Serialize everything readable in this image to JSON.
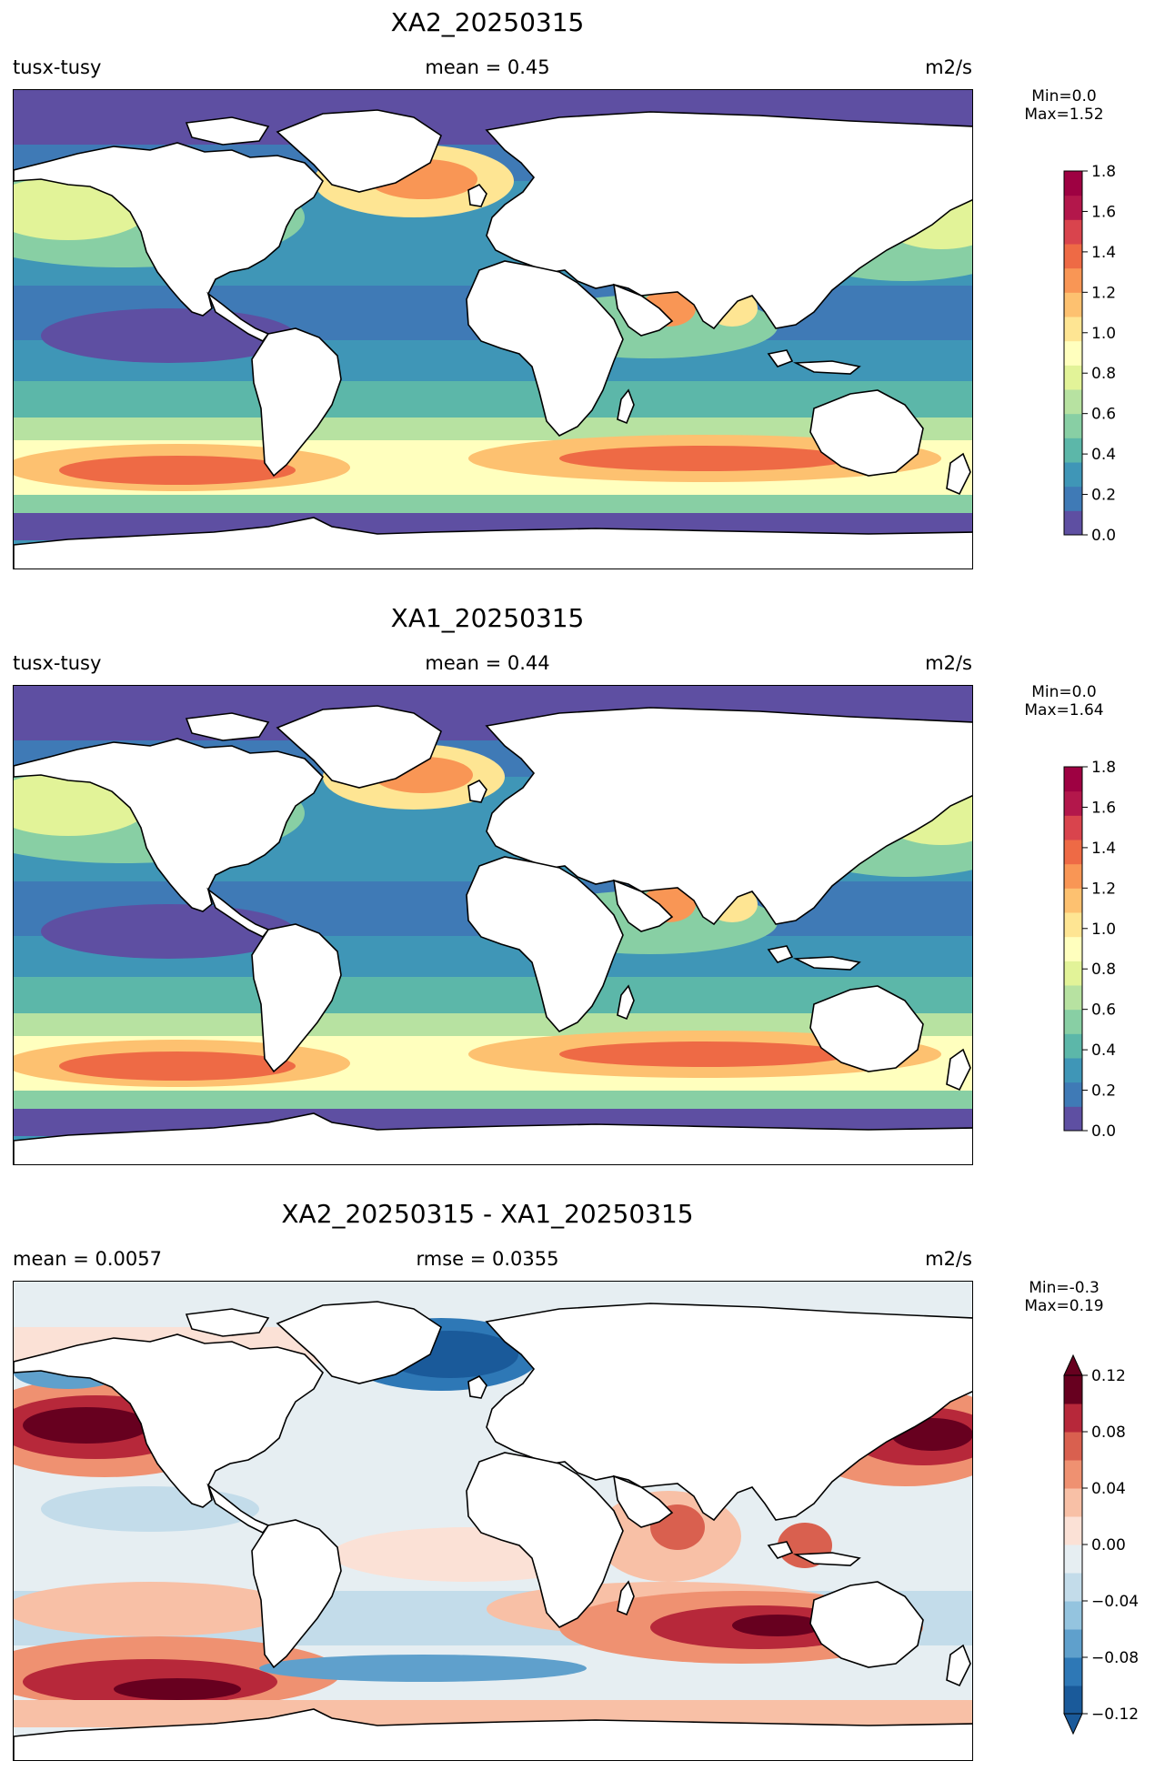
{
  "panels": [
    {
      "title": "XA2_20250315",
      "left_label": "tusx-tusy",
      "center_label": "mean = 0.45",
      "units": "m2/s",
      "colorbar": {
        "min_text": "Min=0.0",
        "max_text": "Max=1.52",
        "ticks": [
          "0.0",
          "0.2",
          "0.4",
          "0.6",
          "0.8",
          "1.0",
          "1.2",
          "1.4",
          "1.6",
          "1.8"
        ],
        "colors": [
          "#5e4fa2",
          "#3f7ab6",
          "#3f96b7",
          "#5cb7a9",
          "#88cfa4",
          "#b7e2a1",
          "#e2f398",
          "#ffffbe",
          "#fee593",
          "#fdc170",
          "#f99655",
          "#ee6a45",
          "#d9444d",
          "#b3174b",
          "#9e0142"
        ]
      },
      "chart_data": {
        "type": "heatmap",
        "variable": "tusx-tusy",
        "mean": 0.45,
        "units": "m2/s",
        "vmin": 0.0,
        "vmax": 1.52,
        "colorbar_range": [
          0.0,
          1.8
        ]
      }
    },
    {
      "title": "XA1_20250315",
      "left_label": "tusx-tusy",
      "center_label": "mean = 0.44",
      "units": "m2/s",
      "colorbar": {
        "min_text": "Min=0.0",
        "max_text": "Max=1.64",
        "ticks": [
          "0.0",
          "0.2",
          "0.4",
          "0.6",
          "0.8",
          "1.0",
          "1.2",
          "1.4",
          "1.6",
          "1.8"
        ],
        "colors": [
          "#5e4fa2",
          "#3f7ab6",
          "#3f96b7",
          "#5cb7a9",
          "#88cfa4",
          "#b7e2a1",
          "#e2f398",
          "#ffffbe",
          "#fee593",
          "#fdc170",
          "#f99655",
          "#ee6a45",
          "#d9444d",
          "#b3174b",
          "#9e0142"
        ]
      },
      "chart_data": {
        "type": "heatmap",
        "variable": "tusx-tusy",
        "mean": 0.44,
        "units": "m2/s",
        "vmin": 0.0,
        "vmax": 1.64,
        "colorbar_range": [
          0.0,
          1.8
        ]
      }
    },
    {
      "title": "XA2_20250315 - XA1_20250315",
      "left_label": "mean = 0.0057",
      "center_label": "rmse = 0.0355",
      "units": "m2/s",
      "colorbar": {
        "min_text": "Min=-0.3",
        "max_text": "Max=0.19",
        "ticks": [
          "−0.12",
          "−0.08",
          "−0.04",
          "0.00",
          "0.04",
          "0.08",
          "0.12"
        ],
        "colors": [
          "#1a5a9a",
          "#2e78b6",
          "#5fa0cc",
          "#94c4df",
          "#c3dcea",
          "#e6eef2",
          "#fbe1d6",
          "#f8c0a6",
          "#ef9171",
          "#d9604f",
          "#b7283a",
          "#67001f"
        ]
      },
      "chart_data": {
        "type": "heatmap",
        "mean": 0.0057,
        "rmse": 0.0355,
        "units": "m2/s",
        "vmin": -0.3,
        "vmax": 0.19,
        "colorbar_range": [
          -0.12,
          0.12
        ]
      }
    }
  ],
  "chart_data": [
    {
      "type": "heatmap",
      "title": "XA2_20250315",
      "variable": "tusx-tusy",
      "mean": 0.45,
      "units": "m2/s",
      "min": 0.0,
      "max": 1.52,
      "colorbar_range": [
        0.0,
        1.8
      ]
    },
    {
      "type": "heatmap",
      "title": "XA1_20250315",
      "variable": "tusx-tusy",
      "mean": 0.44,
      "units": "m2/s",
      "min": 0.0,
      "max": 1.64,
      "colorbar_range": [
        0.0,
        1.8
      ]
    },
    {
      "type": "heatmap",
      "title": "XA2_20250315 - XA1_20250315",
      "mean": 0.0057,
      "rmse": 0.0355,
      "units": "m2/s",
      "min": -0.3,
      "max": 0.19,
      "colorbar_range": [
        -0.12,
        0.12
      ]
    }
  ]
}
